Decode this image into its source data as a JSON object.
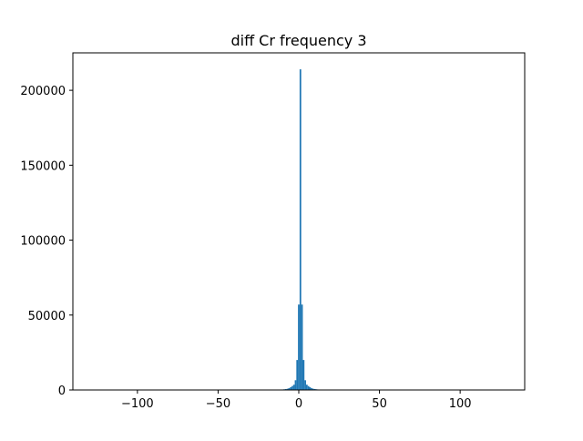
{
  "chart_data": {
    "type": "bar",
    "title": "diff Cr frequency 3",
    "xlabel": "",
    "ylabel": "",
    "xlim": [
      -140,
      140
    ],
    "ylim": [
      0,
      225000
    ],
    "grid": false,
    "bar_color": "#1f77b4",
    "x_ticks": [
      -100,
      -50,
      0,
      50,
      100
    ],
    "x_tick_labels": [
      "−100",
      "−50",
      "0",
      "50",
      "100"
    ],
    "y_ticks": [
      0,
      50000,
      100000,
      150000,
      200000
    ],
    "y_tick_labels": [
      "0",
      "50000",
      "100000",
      "150000",
      "200000"
    ],
    "bin_width": 1,
    "bins": [
      {
        "x": -12,
        "value": 150
      },
      {
        "x": -11,
        "value": 220
      },
      {
        "x": -10,
        "value": 320
      },
      {
        "x": -9,
        "value": 450
      },
      {
        "x": -8,
        "value": 600
      },
      {
        "x": -7,
        "value": 800
      },
      {
        "x": -6,
        "value": 1200
      },
      {
        "x": -5,
        "value": 1800
      },
      {
        "x": -4,
        "value": 2600
      },
      {
        "x": -3,
        "value": 3500
      },
      {
        "x": -2,
        "value": 6500
      },
      {
        "x": -1,
        "value": 20000
      },
      {
        "x": 0,
        "value": 57000
      },
      {
        "x": 1,
        "value": 214000
      },
      {
        "x": 2,
        "value": 57000
      },
      {
        "x": 3,
        "value": 20000
      },
      {
        "x": 4,
        "value": 6500
      },
      {
        "x": 5,
        "value": 3500
      },
      {
        "x": 6,
        "value": 2600
      },
      {
        "x": 7,
        "value": 1800
      },
      {
        "x": 8,
        "value": 1200
      },
      {
        "x": 9,
        "value": 800
      },
      {
        "x": 10,
        "value": 600
      },
      {
        "x": 11,
        "value": 450
      },
      {
        "x": 12,
        "value": 320
      },
      {
        "x": 13,
        "value": 220
      },
      {
        "x": 14,
        "value": 150
      }
    ]
  }
}
